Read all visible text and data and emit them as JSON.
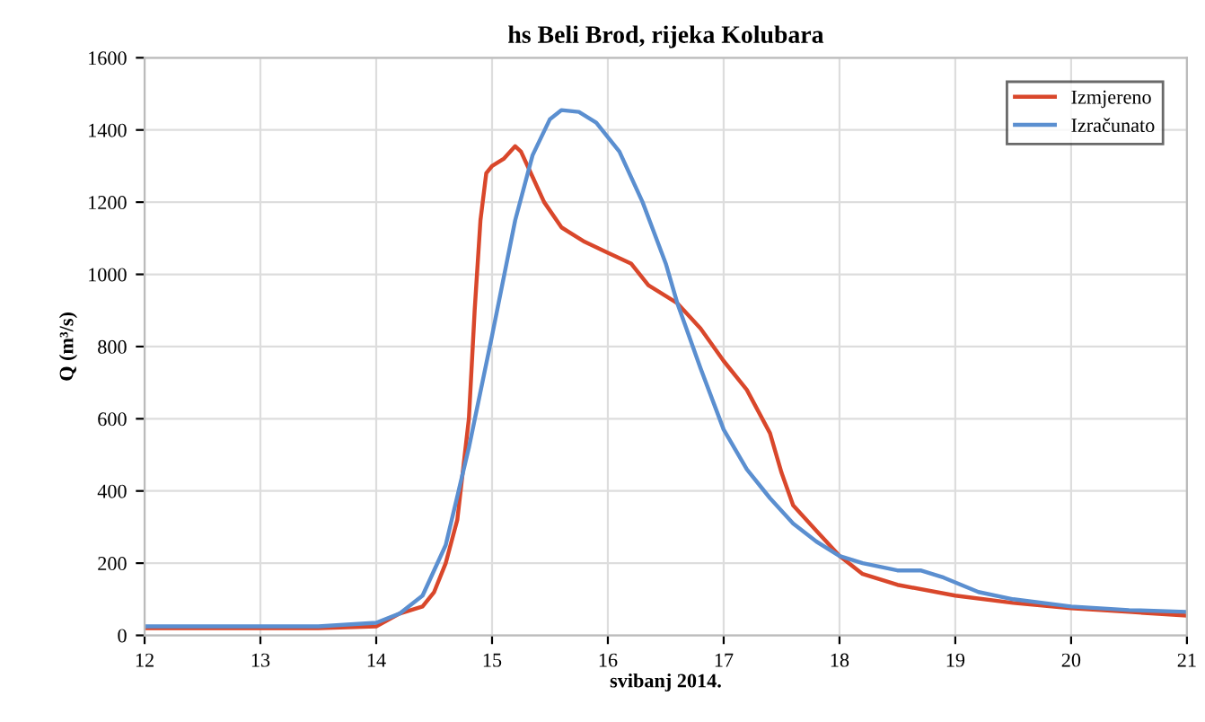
{
  "chart_data": {
    "type": "line",
    "title": "hs Beli Brod, rijeka Kolubara",
    "xlabel": "svibanj 2014.",
    "ylabel": "Q (m³/s)",
    "xlim": [
      12,
      21
    ],
    "xticks": [
      12,
      13,
      14,
      15,
      16,
      17,
      18,
      19,
      20,
      21
    ],
    "ylim": [
      0,
      1600
    ],
    "yticks": [
      0,
      200,
      400,
      600,
      800,
      1000,
      1200,
      1400,
      1600
    ],
    "grid": true,
    "legend": "top right",
    "line_style": "solid",
    "marker": "none",
    "series": [
      {
        "name": "Izmjereno",
        "color": "#d9472b",
        "x": [
          12,
          13,
          13.5,
          14,
          14.2,
          14.4,
          14.5,
          14.6,
          14.7,
          14.8,
          14.85,
          14.9,
          14.95,
          15.0,
          15.1,
          15.2,
          15.25,
          15.35,
          15.45,
          15.6,
          15.8,
          16.0,
          16.2,
          16.35,
          16.6,
          16.8,
          17.0,
          17.2,
          17.4,
          17.5,
          17.6,
          17.8,
          18.0,
          18.2,
          18.5,
          19,
          19.5,
          20,
          20.5,
          21
        ],
        "values": [
          20,
          20,
          20,
          25,
          60,
          80,
          120,
          200,
          320,
          600,
          900,
          1150,
          1280,
          1300,
          1320,
          1355,
          1340,
          1270,
          1200,
          1130,
          1090,
          1060,
          1030,
          970,
          920,
          850,
          760,
          680,
          560,
          450,
          360,
          290,
          220,
          170,
          140,
          110,
          90,
          75,
          65,
          55
        ]
      },
      {
        "name": "Izračunato",
        "color": "#5b8fd0",
        "x": [
          12,
          13,
          13.5,
          14,
          14.2,
          14.4,
          14.6,
          14.8,
          15.0,
          15.2,
          15.35,
          15.5,
          15.6,
          15.75,
          15.9,
          16.1,
          16.3,
          16.5,
          16.6,
          16.8,
          17.0,
          17.2,
          17.4,
          17.6,
          17.8,
          18.0,
          18.2,
          18.5,
          18.7,
          18.9,
          19.2,
          19.5,
          20,
          20.5,
          21
        ],
        "values": [
          25,
          25,
          25,
          35,
          60,
          110,
          250,
          520,
          830,
          1150,
          1330,
          1430,
          1455,
          1450,
          1420,
          1340,
          1200,
          1030,
          920,
          740,
          570,
          460,
          380,
          310,
          260,
          220,
          200,
          180,
          180,
          160,
          120,
          100,
          80,
          70,
          65
        ]
      }
    ]
  }
}
